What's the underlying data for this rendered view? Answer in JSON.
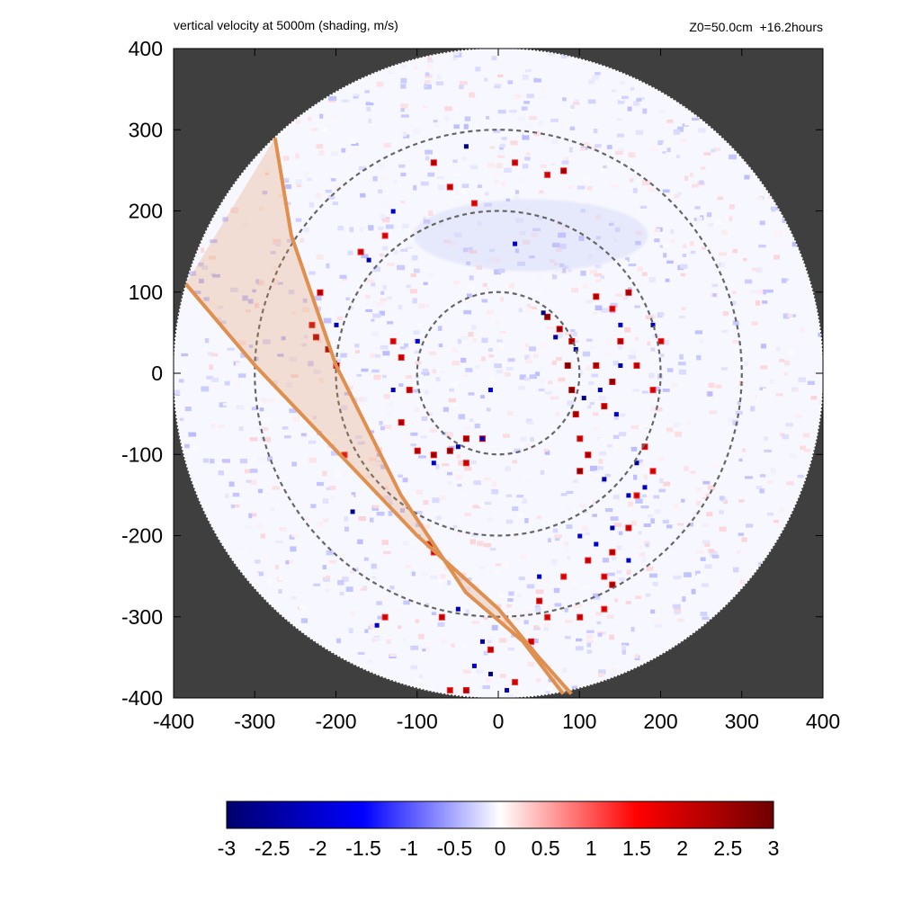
{
  "chart_data": {
    "type": "heatmap",
    "title": "vertical velocity at 5000m (shading, m/s)",
    "annotation": "Z0=50.0cm  +16.2hours",
    "xlim": [
      -400,
      400
    ],
    "ylim": [
      -400,
      400
    ],
    "x_ticks": [
      -400,
      -300,
      -200,
      -100,
      0,
      100,
      200,
      300,
      400
    ],
    "y_ticks": [
      -400,
      -300,
      -200,
      -100,
      0,
      100,
      200,
      300,
      400
    ],
    "domain_radius": 400,
    "range_circles": [
      100,
      200,
      300
    ],
    "colorbar": {
      "range": [
        -3,
        3
      ],
      "ticks": [
        "-3",
        "-2.5",
        "-2",
        "-1.5",
        "-1",
        "-0.5",
        "0",
        "0.5",
        "1",
        "1.5",
        "2",
        "2.5",
        "3"
      ],
      "colors": [
        "#00006e",
        "#0000ff",
        "#ffffff",
        "#ff0000",
        "#6e0000"
      ]
    },
    "band": {
      "color": "#e0904e",
      "outer_edge": [
        [
          -275,
          290
        ],
        [
          -255,
          170
        ],
        [
          -200,
          10
        ],
        [
          -120,
          -150
        ],
        [
          -40,
          -270
        ],
        [
          30,
          -330
        ],
        [
          80,
          -395
        ]
      ],
      "inner_edge": [
        [
          -385,
          110
        ],
        [
          -300,
          10
        ],
        [
          -200,
          -95
        ],
        [
          -100,
          -200
        ],
        [
          0,
          -290
        ],
        [
          50,
          -350
        ],
        [
          90,
          -395
        ]
      ]
    },
    "updraft_cells": [
      [
        60,
        70,
        3.0
      ],
      [
        75,
        55,
        2.8
      ],
      [
        90,
        40,
        2.5
      ],
      [
        85,
        10,
        3.0
      ],
      [
        90,
        -20,
        3.0
      ],
      [
        95,
        -50,
        2.6
      ],
      [
        100,
        -80,
        2.2
      ],
      [
        120,
        10,
        2.5
      ],
      [
        140,
        -10,
        2.8
      ],
      [
        130,
        -40,
        2.4
      ],
      [
        110,
        -100,
        2.5
      ],
      [
        100,
        -120,
        2.8
      ],
      [
        150,
        40,
        2.4
      ],
      [
        170,
        10,
        2.3
      ],
      [
        190,
        -20,
        2.0
      ],
      [
        160,
        100,
        2.6
      ],
      [
        120,
        95,
        2.4
      ],
      [
        140,
        80,
        2.0
      ],
      [
        200,
        40,
        2.0
      ],
      [
        180,
        -90,
        2.2
      ],
      [
        190,
        -120,
        2.0
      ],
      [
        170,
        -150,
        2.0
      ],
      [
        160,
        -190,
        2.2
      ],
      [
        140,
        -220,
        2.4
      ],
      [
        130,
        -250,
        2.0
      ],
      [
        140,
        -260,
        2.5
      ],
      [
        110,
        -230,
        2.2
      ],
      [
        80,
        -250,
        2.0
      ],
      [
        50,
        -280,
        2.2
      ],
      [
        60,
        -300,
        2.0
      ],
      [
        40,
        -330,
        2.2
      ],
      [
        20,
        -380,
        2.0
      ],
      [
        -40,
        -80,
        2.6
      ],
      [
        -20,
        -80,
        2.4
      ],
      [
        -60,
        -95,
        2.8
      ],
      [
        -80,
        -100,
        2.6
      ],
      [
        -100,
        -95,
        2.4
      ],
      [
        -40,
        -110,
        2.2
      ],
      [
        -120,
        -60,
        2.4
      ],
      [
        -110,
        -20,
        2.3
      ],
      [
        -120,
        20,
        2.2
      ],
      [
        -130,
        40,
        2.0
      ],
      [
        -210,
        30,
        3.0
      ],
      [
        -225,
        45,
        2.6
      ],
      [
        -200,
        10,
        2.8
      ],
      [
        -230,
        60,
        2.2
      ],
      [
        -220,
        100,
        2.4
      ],
      [
        -170,
        150,
        2.2
      ],
      [
        -140,
        170,
        2.0
      ],
      [
        -80,
        260,
        2.4
      ],
      [
        -60,
        230,
        2.2
      ],
      [
        -30,
        210,
        2.0
      ],
      [
        20,
        260,
        2.2
      ],
      [
        80,
        250,
        2.6
      ],
      [
        60,
        245,
        2.0
      ],
      [
        -70,
        -300,
        2.2
      ],
      [
        -10,
        -340,
        2.2
      ],
      [
        -40,
        -390,
        2.4
      ],
      [
        -60,
        -390,
        2.0
      ],
      [
        -140,
        -300,
        2.0
      ],
      [
        -85,
        -210,
        2.4
      ],
      [
        -80,
        -220,
        2.0
      ],
      [
        -190,
        -100,
        2.0
      ],
      [
        130,
        -290,
        2.0
      ],
      [
        100,
        -300,
        2.2
      ]
    ],
    "downdraft_cells": [
      [
        55,
        75,
        -2.8
      ],
      [
        70,
        45,
        -2.4
      ],
      [
        95,
        30,
        -2.5
      ],
      [
        105,
        -30,
        -2.8
      ],
      [
        125,
        -20,
        -2.2
      ],
      [
        150,
        10,
        -2.4
      ],
      [
        145,
        -50,
        -2.0
      ],
      [
        130,
        -130,
        -2.4
      ],
      [
        170,
        -110,
        -2.6
      ],
      [
        160,
        -150,
        -2.2
      ],
      [
        140,
        -190,
        -2.4
      ],
      [
        120,
        -210,
        -2.0
      ],
      [
        100,
        -200,
        -2.0
      ],
      [
        190,
        60,
        -2.2
      ],
      [
        150,
        60,
        -2.0
      ],
      [
        -40,
        280,
        -2.8
      ],
      [
        20,
        160,
        -2.0
      ],
      [
        -10,
        -20,
        -1.8
      ],
      [
        -20,
        -80,
        -2.2
      ],
      [
        -50,
        -90,
        -2.4
      ],
      [
        -80,
        -110,
        -2.0
      ],
      [
        -130,
        -20,
        -2.2
      ],
      [
        -100,
        40,
        -2.0
      ],
      [
        -180,
        -170,
        -2.6
      ],
      [
        -200,
        60,
        -2.2
      ],
      [
        -160,
        140,
        -2.4
      ],
      [
        -130,
        200,
        -2.0
      ],
      [
        -20,
        -330,
        -2.4
      ],
      [
        -10,
        -370,
        -2.8
      ],
      [
        10,
        -390,
        -2.2
      ],
      [
        -50,
        -290,
        -2.2
      ],
      [
        -150,
        -310,
        -2.0
      ],
      [
        -30,
        -360,
        -2.0
      ],
      [
        50,
        -250,
        -2.0
      ],
      [
        160,
        -230,
        -2.0
      ],
      [
        180,
        -140,
        -2.2
      ]
    ]
  }
}
